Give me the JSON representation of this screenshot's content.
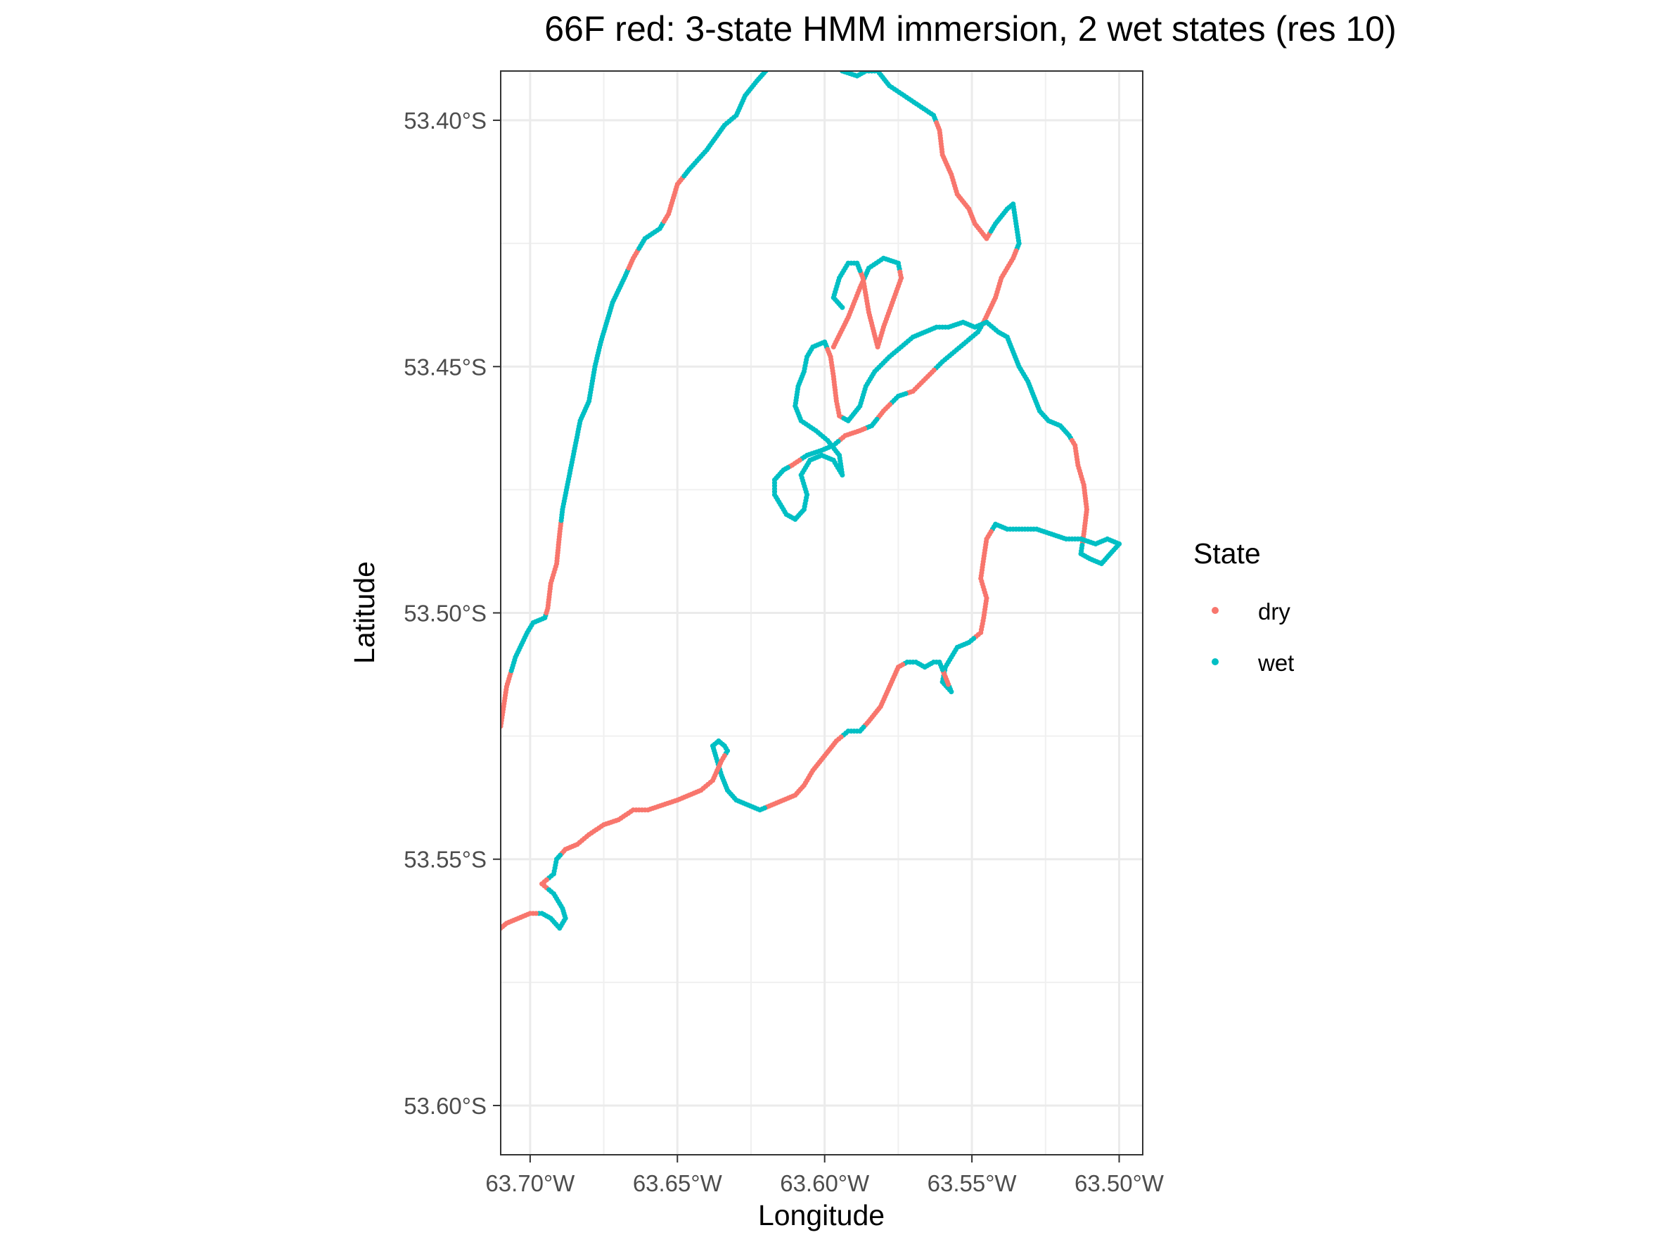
{
  "chart_data": {
    "type": "scatter",
    "title": "66F red: 3-state HMM immersion, 2 wet states (res 10)",
    "xlabel": "Longitude",
    "ylabel": "Latitude",
    "xlim": [
      -63.71,
      -63.492
    ],
    "ylim": [
      -53.61,
      -53.39
    ],
    "x_ticks": [
      -63.7,
      -63.65,
      -63.6,
      -63.55,
      -63.5
    ],
    "x_tick_labels": [
      "63.70°W",
      "63.65°W",
      "63.60°W",
      "63.55°W",
      "63.50°W"
    ],
    "y_ticks": [
      -53.4,
      -53.45,
      -53.5,
      -53.55,
      -53.6
    ],
    "y_tick_labels": [
      "53.40°S",
      "53.45°S",
      "53.50°S",
      "53.55°S",
      "53.60°S"
    ],
    "grid": true,
    "legend": {
      "title": "State",
      "position": "right"
    },
    "series": [
      {
        "name": "dry",
        "color": "#F8766D"
      },
      {
        "name": "wet",
        "color": "#00BFC4"
      }
    ],
    "tracks": [
      {
        "id": "west-track",
        "points": [
          [
            -63.71,
            -53.523,
            "dry"
          ],
          [
            -63.708,
            -53.515,
            "dry"
          ],
          [
            -63.705,
            -53.509,
            "wet"
          ],
          [
            -63.701,
            -53.504,
            "wet"
          ],
          [
            -63.699,
            -53.502,
            "wet"
          ],
          [
            -63.695,
            -53.501,
            "wet"
          ],
          [
            -63.694,
            -53.499,
            "dry"
          ],
          [
            -63.693,
            -53.494,
            "dry"
          ],
          [
            -63.691,
            -53.49,
            "dry"
          ],
          [
            -63.69,
            -53.484,
            "dry"
          ],
          [
            -63.689,
            -53.479,
            "wet"
          ],
          [
            -63.686,
            -53.47,
            "wet"
          ],
          [
            -63.683,
            -53.461,
            "wet"
          ],
          [
            -63.68,
            -53.457,
            "wet"
          ],
          [
            -63.678,
            -53.45,
            "wet"
          ],
          [
            -63.676,
            -53.445,
            "wet"
          ],
          [
            -63.672,
            -53.437,
            "wet"
          ],
          [
            -63.668,
            -53.432,
            "wet"
          ],
          [
            -63.665,
            -53.428,
            "dry"
          ],
          [
            -63.661,
            -53.424,
            "wet"
          ],
          [
            -63.656,
            -53.422,
            "wet"
          ],
          [
            -63.653,
            -53.419,
            "dry"
          ],
          [
            -63.65,
            -53.413,
            "dry"
          ],
          [
            -63.646,
            -53.41,
            "wet"
          ],
          [
            -63.64,
            -53.406,
            "wet"
          ],
          [
            -63.634,
            -53.401,
            "wet"
          ],
          [
            -63.63,
            -53.399,
            "wet"
          ],
          [
            -63.627,
            -53.395,
            "wet"
          ],
          [
            -63.623,
            -53.392,
            "wet"
          ],
          [
            -63.62,
            -53.39,
            "wet"
          ]
        ]
      },
      {
        "id": "east-track",
        "points": [
          [
            -63.594,
            -53.39,
            "wet"
          ],
          [
            -63.589,
            -53.391,
            "wet"
          ],
          [
            -63.586,
            -53.39,
            "wet"
          ],
          [
            -63.582,
            -53.39,
            "wet"
          ],
          [
            -63.578,
            -53.393,
            "wet"
          ],
          [
            -63.573,
            -53.395,
            "wet"
          ],
          [
            -63.568,
            -53.397,
            "wet"
          ],
          [
            -63.563,
            -53.399,
            "wet"
          ],
          [
            -63.561,
            -53.402,
            "dry"
          ],
          [
            -63.56,
            -53.407,
            "dry"
          ],
          [
            -63.557,
            -53.411,
            "dry"
          ],
          [
            -63.555,
            -53.415,
            "dry"
          ],
          [
            -63.551,
            -53.418,
            "dry"
          ],
          [
            -63.549,
            -53.421,
            "dry"
          ],
          [
            -63.545,
            -53.424,
            "dry"
          ],
          [
            -63.542,
            -53.421,
            "wet"
          ],
          [
            -63.538,
            -53.418,
            "wet"
          ],
          [
            -63.536,
            -53.417,
            "wet"
          ],
          [
            -63.535,
            -53.421,
            "wet"
          ],
          [
            -63.534,
            -53.425,
            "wet"
          ],
          [
            -63.536,
            -53.428,
            "dry"
          ],
          [
            -63.54,
            -53.432,
            "dry"
          ],
          [
            -63.542,
            -53.436,
            "dry"
          ],
          [
            -63.546,
            -53.441,
            "dry"
          ],
          [
            -63.548,
            -53.443,
            "wet"
          ],
          [
            -63.552,
            -53.445,
            "wet"
          ],
          [
            -63.556,
            -53.447,
            "wet"
          ],
          [
            -63.56,
            -53.449,
            "wet"
          ],
          [
            -63.565,
            -53.452,
            "dry"
          ],
          [
            -63.57,
            -53.455,
            "dry"
          ],
          [
            -63.575,
            -53.456,
            "wet"
          ],
          [
            -63.58,
            -53.459,
            "dry"
          ],
          [
            -63.584,
            -53.462,
            "wet"
          ],
          [
            -63.588,
            -53.463,
            "dry"
          ],
          [
            -63.593,
            -53.464,
            "dry"
          ],
          [
            -63.597,
            -53.466,
            "wet"
          ],
          [
            -63.601,
            -53.467,
            "wet"
          ],
          [
            -63.606,
            -53.468,
            "wet"
          ],
          [
            -63.611,
            -53.47,
            "dry"
          ],
          [
            -63.614,
            -53.471,
            "wet"
          ],
          [
            -63.617,
            -53.473,
            "wet"
          ],
          [
            -63.617,
            -53.476,
            "wet"
          ],
          [
            -63.615,
            -53.478,
            "wet"
          ],
          [
            -63.613,
            -53.48,
            "wet"
          ],
          [
            -63.61,
            -53.481,
            "wet"
          ],
          [
            -63.607,
            -53.479,
            "wet"
          ],
          [
            -63.606,
            -53.476,
            "wet"
          ],
          [
            -63.608,
            -53.472,
            "wet"
          ],
          [
            -63.605,
            -53.469,
            "wet"
          ],
          [
            -63.601,
            -53.468,
            "wet"
          ],
          [
            -63.597,
            -53.469,
            "wet"
          ],
          [
            -63.594,
            -53.472,
            "wet"
          ],
          [
            -63.595,
            -53.468,
            "wet"
          ],
          [
            -63.599,
            -53.465,
            "wet"
          ],
          [
            -63.603,
            -53.463,
            "wet"
          ],
          [
            -63.608,
            -53.461,
            "wet"
          ],
          [
            -63.61,
            -53.458,
            "wet"
          ],
          [
            -63.609,
            -53.454,
            "wet"
          ],
          [
            -63.607,
            -53.451,
            "wet"
          ],
          [
            -63.606,
            -53.448,
            "wet"
          ],
          [
            -63.604,
            -53.446,
            "wet"
          ],
          [
            -63.6,
            -53.445,
            "wet"
          ],
          [
            -63.598,
            -53.448,
            "dry"
          ],
          [
            -63.597,
            -53.452,
            "dry"
          ],
          [
            -63.596,
            -53.457,
            "dry"
          ],
          [
            -63.595,
            -53.46,
            "dry"
          ],
          [
            -63.592,
            -53.461,
            "wet"
          ],
          [
            -63.588,
            -53.458,
            "wet"
          ],
          [
            -63.586,
            -53.454,
            "wet"
          ],
          [
            -63.583,
            -53.451,
            "wet"
          ],
          [
            -63.578,
            -53.448,
            "wet"
          ],
          [
            -63.574,
            -53.446,
            "wet"
          ],
          [
            -63.57,
            -53.444,
            "wet"
          ],
          [
            -63.566,
            -53.443,
            "wet"
          ],
          [
            -63.562,
            -53.442,
            "wet"
          ],
          [
            -63.558,
            -53.442,
            "wet"
          ],
          [
            -63.553,
            -53.441,
            "wet"
          ],
          [
            -63.549,
            -53.442,
            "wet"
          ],
          [
            -63.545,
            -53.441,
            "wet"
          ],
          [
            -63.541,
            -53.443,
            "wet"
          ],
          [
            -63.538,
            -53.444,
            "wet"
          ],
          [
            -63.536,
            -53.447,
            "wet"
          ],
          [
            -63.534,
            -53.45,
            "wet"
          ],
          [
            -63.531,
            -53.453,
            "wet"
          ],
          [
            -63.529,
            -53.456,
            "wet"
          ],
          [
            -63.527,
            -53.459,
            "wet"
          ],
          [
            -63.524,
            -53.461,
            "wet"
          ],
          [
            -63.52,
            -53.462,
            "wet"
          ],
          [
            -63.517,
            -53.464,
            "wet"
          ],
          [
            -63.515,
            -53.466,
            "dry"
          ],
          [
            -63.514,
            -53.47,
            "dry"
          ],
          [
            -63.512,
            -53.474,
            "dry"
          ],
          [
            -63.511,
            -53.479,
            "dry"
          ],
          [
            -63.512,
            -53.484,
            "dry"
          ],
          [
            -63.513,
            -53.488,
            "wet"
          ],
          [
            -63.51,
            -53.489,
            "wet"
          ],
          [
            -63.506,
            -53.49,
            "wet"
          ],
          [
            -63.503,
            -53.488,
            "wet"
          ],
          [
            -63.5,
            -53.486,
            "wet"
          ],
          [
            -63.504,
            -53.485,
            "wet"
          ],
          [
            -63.508,
            -53.486,
            "wet"
          ],
          [
            -63.513,
            -53.485,
            "wet"
          ],
          [
            -63.518,
            -53.485,
            "wet"
          ],
          [
            -63.523,
            -53.484,
            "wet"
          ],
          [
            -63.528,
            -53.483,
            "wet"
          ],
          [
            -63.533,
            -53.483,
            "wet"
          ],
          [
            -63.538,
            -53.483,
            "wet"
          ],
          [
            -63.542,
            -53.482,
            "wet"
          ],
          [
            -63.545,
            -53.485,
            "dry"
          ],
          [
            -63.546,
            -53.489,
            "dry"
          ],
          [
            -63.547,
            -53.493,
            "dry"
          ],
          [
            -63.545,
            -53.497,
            "dry"
          ],
          [
            -63.546,
            -53.501,
            "dry"
          ],
          [
            -63.547,
            -53.504,
            "dry"
          ],
          [
            -63.551,
            -53.506,
            "wet"
          ],
          [
            -63.555,
            -53.507,
            "wet"
          ],
          [
            -63.557,
            -53.509,
            "wet"
          ],
          [
            -63.559,
            -53.511,
            "wet"
          ],
          [
            -63.56,
            -53.514,
            "wet"
          ],
          [
            -63.557,
            -53.516,
            "wet"
          ],
          [
            -63.559,
            -53.513,
            "dry"
          ],
          [
            -63.561,
            -53.51,
            "wet"
          ],
          [
            -63.563,
            -53.51,
            "wet"
          ],
          [
            -63.566,
            -53.511,
            "wet"
          ],
          [
            -63.569,
            -53.51,
            "wet"
          ],
          [
            -63.572,
            -53.51,
            "wet"
          ],
          [
            -63.575,
            -53.511,
            "dry"
          ],
          [
            -63.578,
            -53.515,
            "dry"
          ],
          [
            -63.581,
            -53.519,
            "dry"
          ],
          [
            -63.585,
            -53.522,
            "dry"
          ],
          [
            -63.588,
            -53.524,
            "wet"
          ],
          [
            -63.592,
            -53.524,
            "wet"
          ],
          [
            -63.596,
            -53.526,
            "dry"
          ],
          [
            -63.6,
            -53.529,
            "dry"
          ],
          [
            -63.604,
            -53.532,
            "dry"
          ],
          [
            -63.607,
            -53.535,
            "dry"
          ],
          [
            -63.61,
            -53.537,
            "dry"
          ],
          [
            -63.614,
            -53.538,
            "dry"
          ],
          [
            -63.618,
            -53.539,
            "dry"
          ],
          [
            -63.622,
            -53.54,
            "wet"
          ],
          [
            -63.626,
            -53.539,
            "wet"
          ],
          [
            -63.63,
            -53.538,
            "wet"
          ],
          [
            -63.633,
            -53.536,
            "wet"
          ],
          [
            -63.635,
            -53.533,
            "wet"
          ],
          [
            -63.637,
            -53.529,
            "wet"
          ],
          [
            -63.638,
            -53.527,
            "wet"
          ],
          [
            -63.636,
            -53.526,
            "wet"
          ],
          [
            -63.634,
            -53.527,
            "wet"
          ],
          [
            -63.633,
            -53.528,
            "wet"
          ],
          [
            -63.635,
            -53.53,
            "dry"
          ],
          [
            -63.638,
            -53.534,
            "dry"
          ],
          [
            -63.642,
            -53.536,
            "dry"
          ],
          [
            -63.646,
            -53.537,
            "dry"
          ],
          [
            -63.65,
            -53.538,
            "dry"
          ],
          [
            -63.655,
            -53.539,
            "dry"
          ],
          [
            -63.66,
            -53.54,
            "dry"
          ],
          [
            -63.665,
            -53.54,
            "dry"
          ],
          [
            -63.67,
            -53.542,
            "dry"
          ],
          [
            -63.675,
            -53.543,
            "dry"
          ],
          [
            -63.68,
            -53.545,
            "dry"
          ],
          [
            -63.684,
            -53.547,
            "dry"
          ],
          [
            -63.688,
            -53.548,
            "dry"
          ],
          [
            -63.691,
            -53.55,
            "wet"
          ],
          [
            -63.692,
            -53.553,
            "wet"
          ],
          [
            -63.696,
            -53.555,
            "dry"
          ],
          [
            -63.692,
            -53.557,
            "wet"
          ],
          [
            -63.689,
            -53.56,
            "wet"
          ],
          [
            -63.688,
            -53.562,
            "wet"
          ],
          [
            -63.69,
            -53.564,
            "wet"
          ],
          [
            -63.693,
            -53.562,
            "wet"
          ],
          [
            -63.696,
            -53.561,
            "wet"
          ],
          [
            -63.7,
            -53.561,
            "dry"
          ],
          [
            -63.704,
            -53.562,
            "dry"
          ],
          [
            -63.708,
            -53.563,
            "dry"
          ],
          [
            -63.71,
            -53.564,
            "dry"
          ]
        ]
      },
      {
        "id": "inner-loop",
        "points": [
          [
            -63.597,
            -53.446,
            "dry"
          ],
          [
            -63.592,
            -53.44,
            "dry"
          ],
          [
            -63.588,
            -53.434,
            "dry"
          ],
          [
            -63.585,
            -53.43,
            "wet"
          ],
          [
            -63.58,
            -53.428,
            "wet"
          ],
          [
            -63.575,
            -53.429,
            "wet"
          ],
          [
            -63.574,
            -53.432,
            "dry"
          ],
          [
            -63.577,
            -53.437,
            "dry"
          ],
          [
            -63.58,
            -53.442,
            "dry"
          ],
          [
            -63.582,
            -53.446,
            "dry"
          ],
          [
            -63.585,
            -53.439,
            "dry"
          ],
          [
            -63.587,
            -53.432,
            "dry"
          ],
          [
            -63.589,
            -53.429,
            "wet"
          ],
          [
            -63.592,
            -53.429,
            "wet"
          ],
          [
            -63.595,
            -53.432,
            "wet"
          ],
          [
            -63.597,
            -53.436,
            "wet"
          ],
          [
            -63.594,
            -53.438,
            "wet"
          ]
        ]
      }
    ]
  }
}
